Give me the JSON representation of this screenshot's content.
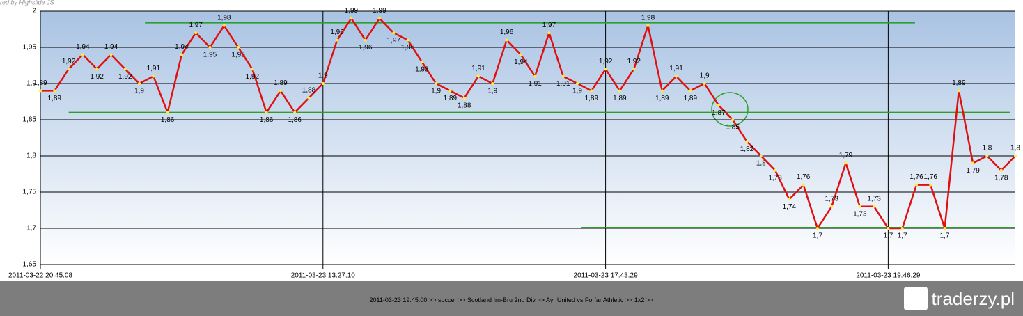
{
  "chart_data": {
    "type": "line",
    "credit": "red by Highslide JS",
    "categories": [
      "2011-03-22 20:45:08",
      null,
      null,
      null,
      null,
      null,
      null,
      null,
      null,
      null,
      null,
      null,
      null,
      null,
      null,
      null,
      null,
      null,
      null,
      null,
      "2011-03-23 13:27:10",
      null,
      null,
      null,
      null,
      null,
      null,
      null,
      null,
      null,
      null,
      null,
      null,
      null,
      null,
      null,
      null,
      null,
      null,
      null,
      "2011-03-23 17:43:29",
      null,
      null,
      null,
      null,
      null,
      null,
      null,
      null,
      null,
      null,
      null,
      null,
      null,
      null,
      null,
      null,
      null,
      null,
      null,
      "2011-03-23 19:46:29",
      null,
      null,
      null,
      null,
      null,
      null,
      null,
      null,
      null
    ],
    "series": [
      {
        "color": "#e01010",
        "values": [
          1.89,
          1.89,
          1.92,
          1.94,
          1.92,
          1.94,
          1.92,
          1.9,
          1.91,
          1.86,
          1.94,
          1.97,
          1.95,
          1.98,
          1.95,
          1.92,
          1.86,
          1.89,
          1.86,
          1.88,
          1.9,
          1.96,
          1.99,
          1.96,
          1.99,
          1.97,
          1.96,
          1.93,
          1.9,
          1.89,
          1.88,
          1.91,
          1.9,
          1.96,
          1.94,
          1.91,
          1.97,
          1.91,
          1.9,
          1.89,
          1.92,
          1.89,
          1.92,
          1.98,
          1.89,
          1.91,
          1.89,
          1.9,
          1.87,
          1.85,
          1.82,
          1.8,
          1.78,
          1.74,
          1.76,
          1.7,
          1.73,
          1.79,
          1.73,
          1.73,
          1.7,
          1.7,
          1.76,
          1.76,
          1.7,
          1.89,
          1.79,
          1.8,
          1.78,
          1.8
        ],
        "value_labels": [
          "1,89",
          "1,89",
          "1,92",
          "1,94",
          "1,92",
          "1,94",
          "1,92",
          "1,9",
          "1,91",
          "1,86",
          "1,94",
          "1,97",
          "1,95",
          "1,98",
          "1,95",
          "1,92",
          "1,86",
          "1,89",
          "1,86",
          "1,88",
          "1,9",
          "1,96",
          "1,99",
          "1,96",
          "1,99",
          "1,97",
          "1,96",
          "1,93",
          "1,9",
          "1,89",
          "1,88",
          "1,91",
          "1,9",
          "1,96",
          "1,94",
          "1,91",
          "1,97",
          "1,91",
          "1,9",
          "1,89",
          "1,92",
          "1,89",
          "1,92",
          "1,98",
          "1,89",
          "1,91",
          "1,89",
          "1,9",
          "1,87",
          "1,85",
          "1,82",
          "1,8",
          "1,78",
          "1,74",
          "1,76",
          "1,7",
          "1,73",
          "1,79",
          "1,73",
          "1,73",
          "1,7",
          "1,7",
          "1,76",
          "1,76",
          "1,7",
          "1,89",
          "1,79",
          "1,8",
          "1,78",
          "1,8"
        ]
      }
    ],
    "ylim": [
      1.65,
      2
    ],
    "yticks": [
      {
        "value": 1.65,
        "label": "1,65"
      },
      {
        "value": 1.7,
        "label": "1,7"
      },
      {
        "value": 1.75,
        "label": "1,75"
      },
      {
        "value": 1.8,
        "label": "1,8"
      },
      {
        "value": 1.85,
        "label": "1,85"
      },
      {
        "value": 1.9,
        "label": "1,9"
      },
      {
        "value": 1.95,
        "label": "1,95"
      },
      2
    ],
    "grid": true,
    "reference_lines": [
      {
        "value": 1.984,
        "from": 7.4,
        "to": 61.9,
        "color": "#2aa02a"
      },
      {
        "value": 1.86,
        "from": 2,
        "to": 68.6,
        "color": "#2aa02a"
      },
      {
        "value": 1.701,
        "from": 38.3,
        "to": 69,
        "color": "#2aa02a"
      }
    ],
    "footer": "2011-03-23 19:45:00 >> soccer >> Scotland Irn-Bru 2nd Div >> Ayr United vs Forfar Athletic >> 1x2 >>",
    "logo": "traderzy.pl"
  }
}
